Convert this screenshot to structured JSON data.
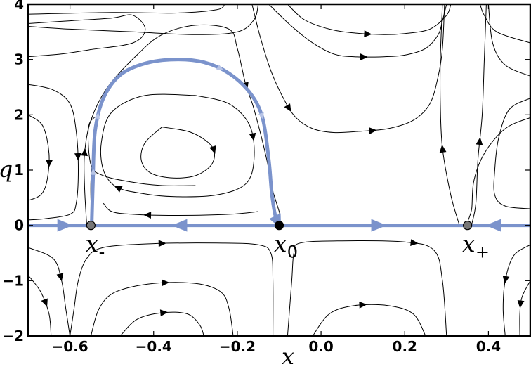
{
  "chart_data": {
    "type": "streamplot",
    "xlabel": "x",
    "ylabel": "q",
    "xlim": [
      -0.7,
      0.5
    ],
    "ylim": [
      -2,
      4
    ],
    "xticks": [
      -0.6,
      -0.4,
      -0.2,
      0.0,
      0.2,
      0.4
    ],
    "xtick_labels": [
      "−0.6",
      "−0.4",
      "−0.2",
      "0.0",
      "0.2",
      "0.4"
    ],
    "yticks": [
      -2,
      -1,
      0,
      1,
      2,
      3,
      4
    ],
    "ytick_labels": [
      "−2",
      "−1",
      "0",
      "1",
      "2",
      "3",
      "4"
    ],
    "grid": false,
    "accent_color": "#7b93cc",
    "fixed_points": [
      {
        "name": "x-",
        "main": "x",
        "sub": "-",
        "x": -0.55,
        "q": 0,
        "color": "#777777"
      },
      {
        "name": "x0",
        "main": "x",
        "sub": "0",
        "x": -0.1,
        "q": 0,
        "color": "#000000"
      },
      {
        "name": "x+",
        "main": "x",
        "sub": "+",
        "x": 0.35,
        "q": 0,
        "color": "#777777"
      }
    ],
    "highlighted_trajectory": {
      "color": "#7b93cc",
      "points": [
        [
          -0.548,
          0.03
        ],
        [
          -0.545,
          0.8
        ],
        [
          -0.54,
          1.7
        ],
        [
          -0.52,
          2.3
        ],
        [
          -0.48,
          2.72
        ],
        [
          -0.42,
          2.93
        ],
        [
          -0.35,
          3.0
        ],
        [
          -0.28,
          2.95
        ],
        [
          -0.22,
          2.75
        ],
        [
          -0.17,
          2.4
        ],
        [
          -0.14,
          1.95
        ],
        [
          -0.125,
          1.2
        ],
        [
          -0.118,
          0.6
        ],
        [
          -0.11,
          0.2
        ],
        [
          -0.102,
          0.04
        ]
      ]
    },
    "axis_flow": [
      {
        "from": -0.7,
        "to": -0.55,
        "direction": "right"
      },
      {
        "from": -0.55,
        "to": -0.1,
        "direction": "left"
      },
      {
        "from": -0.1,
        "to": 0.35,
        "direction": "right"
      },
      {
        "from": 0.35,
        "to": 0.5,
        "direction": "left"
      }
    ],
    "streamlines": [
      {
        "points": [
          [
            -0.7,
            3.65
          ],
          [
            -0.6,
            3.7
          ],
          [
            -0.5,
            3.75
          ],
          [
            -0.45,
            3.8
          ],
          [
            -0.42,
            3.55
          ],
          [
            -0.45,
            3.3
          ],
          [
            -0.55,
            3.18
          ],
          [
            -0.62,
            3.1
          ],
          [
            -0.7,
            3.05
          ]
        ]
      },
      {
        "points": [
          [
            -0.7,
            2.55
          ],
          [
            -0.64,
            2.45
          ],
          [
            -0.6,
            2.2
          ],
          [
            -0.585,
            1.7
          ],
          [
            -0.58,
            1.0
          ],
          [
            -0.585,
            0.4
          ],
          [
            -0.6,
            0.2
          ],
          [
            -0.66,
            0.12
          ],
          [
            -0.7,
            0.1
          ]
        ],
        "arrows": [
          0.5
        ]
      },
      {
        "points": [
          [
            -0.7,
            2.0
          ],
          [
            -0.665,
            1.8
          ],
          [
            -0.65,
            1.3
          ],
          [
            -0.655,
            0.8
          ],
          [
            -0.67,
            0.55
          ],
          [
            -0.7,
            0.45
          ]
        ],
        "arrows": [
          0.55
        ]
      },
      {
        "points": [
          [
            -0.56,
            0.02
          ],
          [
            -0.565,
            0.7
          ],
          [
            -0.565,
            1.3
          ],
          [
            -0.55,
            1.9
          ],
          [
            -0.51,
            2.5
          ],
          [
            -0.44,
            3.08
          ],
          [
            -0.38,
            3.45
          ],
          [
            -0.3,
            3.62
          ],
          [
            -0.22,
            3.55
          ],
          [
            -0.2,
            3.2
          ],
          [
            -0.18,
            2.55
          ],
          [
            -0.16,
            2.1
          ],
          [
            -0.13,
            1.2
          ],
          [
            -0.118,
            0.7
          ],
          [
            -0.1,
            0.25
          ],
          [
            -0.098,
            0.15
          ]
        ],
        "arrows": [
          0.15,
          0.72
        ]
      },
      {
        "points": [
          [
            -0.7,
            3.6
          ],
          [
            -0.6,
            3.55
          ],
          [
            -0.45,
            3.5
          ],
          [
            -0.3,
            3.45
          ],
          [
            -0.2,
            3.5
          ],
          [
            -0.16,
            3.72
          ],
          [
            -0.15,
            4.0
          ]
        ]
      },
      {
        "points": [
          [
            -0.7,
            3.82
          ],
          [
            -0.5,
            3.85
          ],
          [
            -0.35,
            3.84
          ],
          [
            -0.25,
            3.9
          ],
          [
            -0.23,
            4.0
          ]
        ]
      },
      {
        "points": [
          [
            -0.08,
            4.0
          ],
          [
            -0.04,
            3.72
          ],
          [
            0.02,
            3.55
          ],
          [
            0.08,
            3.48
          ],
          [
            0.15,
            3.45
          ],
          [
            0.2,
            3.47
          ],
          [
            0.26,
            3.55
          ],
          [
            0.3,
            3.8
          ],
          [
            0.31,
            4.0
          ]
        ],
        "arrows": [
          0.48
        ]
      },
      {
        "points": [
          [
            -0.125,
            4.0
          ],
          [
            -0.07,
            3.6
          ],
          [
            -0.02,
            3.3
          ],
          [
            0.03,
            3.1
          ],
          [
            0.08,
            3.05
          ],
          [
            0.15,
            3.05
          ],
          [
            0.2,
            3.08
          ],
          [
            0.25,
            3.2
          ],
          [
            0.28,
            3.45
          ],
          [
            0.29,
            3.7
          ],
          [
            0.3,
            4.0
          ]
        ],
        "arrows": [
          0.5
        ]
      },
      {
        "points": [
          [
            -0.165,
            4.0
          ],
          [
            -0.145,
            3.4
          ],
          [
            -0.12,
            2.8
          ],
          [
            -0.09,
            2.3
          ],
          [
            -0.06,
            1.95
          ],
          [
            -0.02,
            1.75
          ],
          [
            0.03,
            1.68
          ],
          [
            0.09,
            1.7
          ],
          [
            0.16,
            1.75
          ],
          [
            0.22,
            1.9
          ],
          [
            0.26,
            2.2
          ],
          [
            0.28,
            2.7
          ],
          [
            0.29,
            3.2
          ],
          [
            0.295,
            4.0
          ]
        ],
        "arrows": [
          0.3,
          0.55
        ]
      },
      {
        "points": [
          [
            0.5,
            3.3
          ],
          [
            0.42,
            3.5
          ],
          [
            0.39,
            3.8
          ],
          [
            0.38,
            4.0
          ]
        ]
      },
      {
        "points": [
          [
            0.5,
            2.7
          ],
          [
            0.44,
            2.9
          ],
          [
            0.41,
            3.3
          ],
          [
            0.4,
            4.0
          ]
        ]
      },
      {
        "points": [
          [
            0.5,
            2.3
          ],
          [
            0.45,
            2.1
          ],
          [
            0.425,
            1.6
          ],
          [
            0.415,
            1.0
          ],
          [
            0.415,
            0.55
          ],
          [
            0.44,
            0.35
          ],
          [
            0.5,
            0.3
          ]
        ]
      },
      {
        "points": [
          [
            0.5,
            1.95
          ],
          [
            0.44,
            1.75
          ],
          [
            0.39,
            1.3
          ],
          [
            0.365,
            0.8
          ],
          [
            0.36,
            0.3
          ],
          [
            0.352,
            0.1
          ],
          [
            0.35,
            0.03
          ]
        ]
      },
      {
        "points": [
          [
            0.36,
            0.02
          ],
          [
            0.37,
            0.4
          ],
          [
            0.375,
            1.2
          ],
          [
            0.385,
            2.0
          ],
          [
            0.39,
            3.0
          ],
          [
            0.395,
            4.0
          ]
        ],
        "arrows": [
          0.38
        ]
      },
      {
        "points": [
          [
            0.33,
            0.02
          ],
          [
            0.31,
            0.55
          ],
          [
            0.29,
            1.4
          ],
          [
            0.285,
            2.2
          ],
          [
            0.285,
            3.0
          ],
          [
            0.29,
            4.0
          ]
        ],
        "arrows": [
          0.35
        ]
      },
      {
        "points": [
          [
            -0.548,
            0.05
          ],
          [
            -0.55,
            0.8
          ],
          [
            -0.54,
            1.6
          ]
        ]
      },
      {
        "points": [
          [
            -0.3,
            0.72
          ],
          [
            -0.38,
            0.72
          ],
          [
            -0.45,
            0.78
          ],
          [
            -0.52,
            0.9
          ],
          [
            -0.55,
            1.1
          ],
          [
            -0.555,
            1.8
          ],
          [
            -0.53,
            2.0
          ]
        ]
      },
      {
        "points": [
          [
            -0.38,
            1.78
          ],
          [
            -0.31,
            1.68
          ],
          [
            -0.26,
            1.42
          ],
          [
            -0.26,
            1.12
          ],
          [
            -0.3,
            0.9
          ],
          [
            -0.36,
            0.86
          ],
          [
            -0.41,
            0.96
          ],
          [
            -0.43,
            1.2
          ],
          [
            -0.42,
            1.5
          ],
          [
            -0.38,
            1.78
          ]
        ],
        "arrows": [
          0.3
        ]
      },
      {
        "points": [
          [
            -0.3,
            2.35
          ],
          [
            -0.22,
            2.2
          ],
          [
            -0.17,
            1.8
          ],
          [
            -0.16,
            1.2
          ],
          [
            -0.18,
            0.75
          ],
          [
            -0.25,
            0.55
          ],
          [
            -0.35,
            0.52
          ],
          [
            -0.43,
            0.58
          ],
          [
            -0.49,
            0.7
          ],
          [
            -0.52,
            1.0
          ],
          [
            -0.525,
            1.5
          ],
          [
            -0.5,
            2.05
          ],
          [
            -0.42,
            2.35
          ],
          [
            -0.3,
            2.35
          ]
        ],
        "arrows": [
          0.18,
          0.6
        ]
      },
      {
        "points": [
          [
            -0.15,
            0.25
          ],
          [
            -0.22,
            0.2
          ],
          [
            -0.35,
            0.18
          ],
          [
            -0.45,
            0.2
          ],
          [
            -0.5,
            0.25
          ],
          [
            -0.52,
            0.4
          ]
        ],
        "arrows": [
          0.7
        ]
      },
      {
        "points": [
          [
            -0.7,
            -0.4
          ],
          [
            -0.64,
            -0.6
          ],
          [
            -0.62,
            -1.0
          ],
          [
            -0.61,
            -1.5
          ],
          [
            -0.6,
            -2.0
          ]
        ],
        "arrows": [
          0.45
        ]
      },
      {
        "points": [
          [
            -0.7,
            -0.9
          ],
          [
            -0.67,
            -1.2
          ],
          [
            -0.65,
            -1.6
          ],
          [
            -0.645,
            -2.0
          ]
        ],
        "arrows": [
          0.5
        ]
      },
      {
        "points": [
          [
            -0.6,
            -2.0
          ],
          [
            -0.59,
            -1.5
          ],
          [
            -0.58,
            -1.0
          ],
          [
            -0.56,
            -0.6
          ],
          [
            -0.52,
            -0.4
          ],
          [
            -0.4,
            -0.33
          ],
          [
            -0.25,
            -0.32
          ],
          [
            -0.15,
            -0.35
          ],
          [
            -0.12,
            -0.5
          ],
          [
            -0.115,
            -1.0
          ],
          [
            -0.115,
            -2.0
          ]
        ],
        "arrows": [
          0.45
        ]
      },
      {
        "points": [
          [
            -0.55,
            -2.0
          ],
          [
            -0.53,
            -1.5
          ],
          [
            -0.49,
            -1.2
          ],
          [
            -0.4,
            -1.05
          ],
          [
            -0.3,
            -1.05
          ],
          [
            -0.24,
            -1.2
          ],
          [
            -0.22,
            -1.5
          ],
          [
            -0.21,
            -2.0
          ]
        ],
        "arrows": [
          0.5
        ]
      },
      {
        "points": [
          [
            -0.48,
            -2.0
          ],
          [
            -0.44,
            -1.7
          ],
          [
            -0.38,
            -1.58
          ],
          [
            -0.32,
            -1.6
          ],
          [
            -0.29,
            -1.8
          ],
          [
            -0.28,
            -2.0
          ]
        ],
        "arrows": [
          0.5
        ]
      },
      {
        "points": [
          [
            -0.08,
            -2.0
          ],
          [
            -0.07,
            -1.0
          ],
          [
            -0.065,
            -0.5
          ],
          [
            -0.05,
            -0.32
          ],
          [
            0.05,
            -0.28
          ],
          [
            0.2,
            -0.3
          ],
          [
            0.27,
            -0.45
          ],
          [
            0.29,
            -1.0
          ],
          [
            0.3,
            -2.0
          ]
        ],
        "arrows": [
          0.66
        ]
      },
      {
        "points": [
          [
            -0.02,
            -2.0
          ],
          [
            0.02,
            -1.6
          ],
          [
            0.08,
            -1.45
          ],
          [
            0.16,
            -1.45
          ],
          [
            0.22,
            -1.6
          ],
          [
            0.25,
            -2.0
          ]
        ],
        "arrows": [
          0.45
        ]
      },
      {
        "points": [
          [
            0.5,
            -0.35
          ],
          [
            0.46,
            -0.55
          ],
          [
            0.44,
            -1.0
          ],
          [
            0.435,
            -1.5
          ],
          [
            0.44,
            -2.0
          ]
        ],
        "arrows": [
          0.45
        ]
      },
      {
        "points": [
          [
            0.5,
            -1.0
          ],
          [
            0.48,
            -1.3
          ],
          [
            0.475,
            -1.6
          ],
          [
            0.475,
            -2.0
          ]
        ],
        "arrows": [
          0.45
        ]
      }
    ]
  }
}
